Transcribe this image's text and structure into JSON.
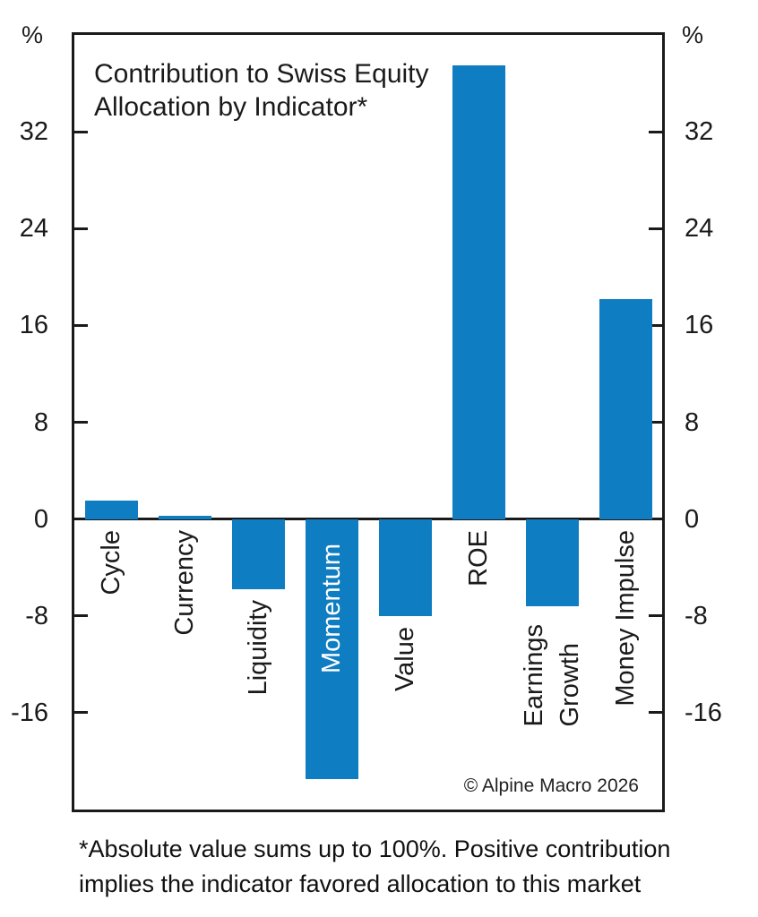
{
  "chart_data": {
    "type": "bar",
    "title_lines": [
      "Contribution to Swiss Equity",
      "Allocation by Indicator*"
    ],
    "unit_label": "%",
    "categories": [
      "Cycle",
      "Currency",
      "Liquidity",
      "Momentum",
      "Value",
      "ROE",
      "Earnings Growth",
      "Money Impulse"
    ],
    "values": [
      1.5,
      0.3,
      -5.8,
      -21.5,
      -8.0,
      37.5,
      -7.2,
      18.2
    ],
    "bars": [
      {
        "label": "Cycle",
        "value": 1.5
      },
      {
        "label": "Currency",
        "value": 0.3
      },
      {
        "label": "Liquidity",
        "value": -5.8
      },
      {
        "label": "Momentum",
        "value": -21.5,
        "label_placement": "inside",
        "label_color": "#ffffff"
      },
      {
        "label": "Value",
        "value": -8.0
      },
      {
        "label": "ROE",
        "value": 37.5
      },
      {
        "label": "Earnings Growth",
        "value": -7.2,
        "label_lines": [
          "Earnings",
          "Growth"
        ]
      },
      {
        "label": "Money Impulse",
        "value": 18.2
      }
    ],
    "ylim": [
      -24,
      40
    ],
    "yticks": [
      32,
      24,
      16,
      8,
      0,
      -8,
      -16
    ],
    "grid": false,
    "legend": false,
    "bar_color": "#0f7dc2",
    "axis_color": "#1a1a1a",
    "copyright": "© Alpine Macro 2026"
  },
  "footnote": {
    "line1": "*Absolute value sums up to 100%. Positive contribution",
    "line2": "implies the indicator favored allocation to this market"
  }
}
